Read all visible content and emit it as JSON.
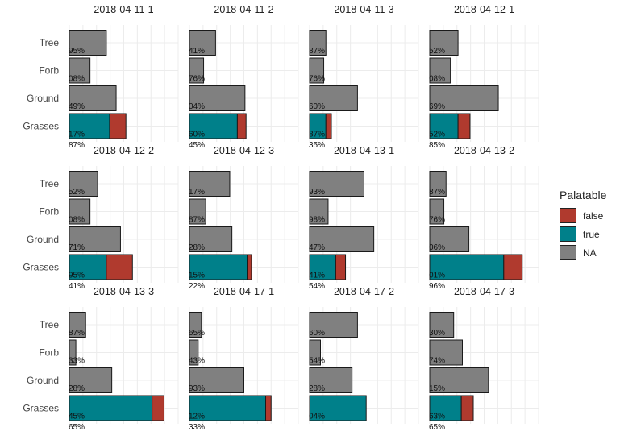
{
  "colors": {
    "false": "#b03a2e",
    "true": "#00808a",
    "NA": "#808080"
  },
  "legend": {
    "title": "Palatable",
    "items": [
      {
        "key": "false",
        "label": "false",
        "color": "#b03a2e"
      },
      {
        "key": "true",
        "label": "true",
        "color": "#00808a"
      },
      {
        "key": "NA",
        "label": "NA",
        "color": "#808080"
      }
    ]
  },
  "chart_data": {
    "type": "bar",
    "orientation": "horizontal",
    "stacked": true,
    "facet_ncol": 4,
    "categories": [
      "Tree",
      "Forb",
      "Ground",
      "Grasses"
    ],
    "xlim": [
      0,
      10
    ],
    "grid": true,
    "legend_position": "right",
    "panels": [
      {
        "title": "2018-04-11-1",
        "bars": [
          {
            "category": "Tree",
            "segments": [
              {
                "fill": "NA",
                "value": 3.4
              }
            ],
            "labels": [
              "95%"
            ]
          },
          {
            "category": "Forb",
            "segments": [
              {
                "fill": "NA",
                "value": 1.9
              }
            ],
            "labels": [
              "08%"
            ]
          },
          {
            "category": "Ground",
            "segments": [
              {
                "fill": "NA",
                "value": 4.3
              }
            ],
            "labels": [
              "49%"
            ]
          },
          {
            "category": "Grasses",
            "segments": [
              {
                "fill": "true",
                "value": 3.7
              },
              {
                "fill": "false",
                "value": 1.5
              }
            ],
            "labels": [
              "17%",
              "87%"
            ]
          }
        ]
      },
      {
        "title": "2018-04-11-2",
        "bars": [
          {
            "category": "Tree",
            "segments": [
              {
                "fill": "NA",
                "value": 2.4
              }
            ],
            "labels": [
              "41%"
            ]
          },
          {
            "category": "Forb",
            "segments": [
              {
                "fill": "NA",
                "value": 1.3
              }
            ],
            "labels": [
              "76%"
            ]
          },
          {
            "category": "Ground",
            "segments": [
              {
                "fill": "NA",
                "value": 5.1
              }
            ],
            "labels": [
              "04%"
            ]
          },
          {
            "category": "Grasses",
            "segments": [
              {
                "fill": "true",
                "value": 4.4
              },
              {
                "fill": "false",
                "value": 0.8
              }
            ],
            "labels": [
              "60%",
              "45%"
            ]
          }
        ]
      },
      {
        "title": "2018-04-11-3",
        "bars": [
          {
            "category": "Tree",
            "segments": [
              {
                "fill": "NA",
                "value": 1.5
              }
            ],
            "labels": [
              "87%"
            ]
          },
          {
            "category": "Forb",
            "segments": [
              {
                "fill": "NA",
                "value": 1.3
              }
            ],
            "labels": [
              "76%"
            ]
          },
          {
            "category": "Ground",
            "segments": [
              {
                "fill": "NA",
                "value": 4.4
              }
            ],
            "labels": [
              "60%"
            ]
          },
          {
            "category": "Grasses",
            "segments": [
              {
                "fill": "true",
                "value": 1.5
              },
              {
                "fill": "false",
                "value": 0.5
              }
            ],
            "labels": [
              "87%",
              "35%"
            ]
          }
        ]
      },
      {
        "title": "2018-04-12-1",
        "bars": [
          {
            "category": "Tree",
            "segments": [
              {
                "fill": "NA",
                "value": 2.6
              }
            ],
            "labels": [
              "52%"
            ]
          },
          {
            "category": "Forb",
            "segments": [
              {
                "fill": "NA",
                "value": 1.9
              }
            ],
            "labels": [
              "08%"
            ]
          },
          {
            "category": "Ground",
            "segments": [
              {
                "fill": "NA",
                "value": 6.3
              }
            ],
            "labels": [
              "69%"
            ]
          },
          {
            "category": "Grasses",
            "segments": [
              {
                "fill": "true",
                "value": 2.6
              },
              {
                "fill": "false",
                "value": 1.1
              }
            ],
            "labels": [
              "52%",
              "85%"
            ]
          }
        ]
      },
      {
        "title": "2018-04-12-2",
        "bars": [
          {
            "category": "Tree",
            "segments": [
              {
                "fill": "NA",
                "value": 2.6
              }
            ],
            "labels": [
              "52%"
            ]
          },
          {
            "category": "Forb",
            "segments": [
              {
                "fill": "NA",
                "value": 1.9
              }
            ],
            "labels": [
              "08%"
            ]
          },
          {
            "category": "Ground",
            "segments": [
              {
                "fill": "NA",
                "value": 4.7
              }
            ],
            "labels": [
              "71%"
            ]
          },
          {
            "category": "Grasses",
            "segments": [
              {
                "fill": "true",
                "value": 3.4
              },
              {
                "fill": "false",
                "value": 2.4
              }
            ],
            "labels": [
              "95%",
              "41%"
            ]
          }
        ]
      },
      {
        "title": "2018-04-12-3",
        "bars": [
          {
            "category": "Tree",
            "segments": [
              {
                "fill": "NA",
                "value": 3.7
              }
            ],
            "labels": [
              "17%"
            ]
          },
          {
            "category": "Forb",
            "segments": [
              {
                "fill": "NA",
                "value": 1.5
              }
            ],
            "labels": [
              "87%"
            ]
          },
          {
            "category": "Ground",
            "segments": [
              {
                "fill": "NA",
                "value": 3.9
              }
            ],
            "labels": [
              "28%"
            ]
          },
          {
            "category": "Grasses",
            "segments": [
              {
                "fill": "true",
                "value": 5.3
              },
              {
                "fill": "false",
                "value": 0.4
              }
            ],
            "labels": [
              "15%",
              "22%"
            ]
          }
        ]
      },
      {
        "title": "2018-04-13-1",
        "bars": [
          {
            "category": "Tree",
            "segments": [
              {
                "fill": "NA",
                "value": 5.0
              }
            ],
            "labels": [
              "93%"
            ]
          },
          {
            "category": "Forb",
            "segments": [
              {
                "fill": "NA",
                "value": 1.7
              }
            ],
            "labels": [
              "98%"
            ]
          },
          {
            "category": "Ground",
            "segments": [
              {
                "fill": "NA",
                "value": 5.9
              }
            ],
            "labels": [
              "47%"
            ]
          },
          {
            "category": "Grasses",
            "segments": [
              {
                "fill": "true",
                "value": 2.4
              },
              {
                "fill": "false",
                "value": 0.9
              }
            ],
            "labels": [
              "41%",
              "54%"
            ]
          }
        ]
      },
      {
        "title": "2018-04-13-2",
        "bars": [
          {
            "category": "Tree",
            "segments": [
              {
                "fill": "NA",
                "value": 1.5
              }
            ],
            "labels": [
              "87%"
            ]
          },
          {
            "category": "Forb",
            "segments": [
              {
                "fill": "NA",
                "value": 1.3
              }
            ],
            "labels": [
              "76%"
            ]
          },
          {
            "category": "Ground",
            "segments": [
              {
                "fill": "NA",
                "value": 3.6
              }
            ],
            "labels": [
              "06%"
            ]
          },
          {
            "category": "Grasses",
            "segments": [
              {
                "fill": "true",
                "value": 6.8
              },
              {
                "fill": "false",
                "value": 1.7
              }
            ],
            "labels": [
              "01%",
              "96%"
            ]
          }
        ]
      },
      {
        "title": "2018-04-13-3",
        "bars": [
          {
            "category": "Tree",
            "segments": [
              {
                "fill": "NA",
                "value": 1.5
              }
            ],
            "labels": [
              "87%"
            ]
          },
          {
            "category": "Forb",
            "segments": [
              {
                "fill": "NA",
                "value": 0.6
              }
            ],
            "labels": [
              "33%"
            ]
          },
          {
            "category": "Ground",
            "segments": [
              {
                "fill": "NA",
                "value": 3.9
              }
            ],
            "labels": [
              "28%"
            ]
          },
          {
            "category": "Grasses",
            "segments": [
              {
                "fill": "true",
                "value": 7.6
              },
              {
                "fill": "false",
                "value": 1.1
              }
            ],
            "labels": [
              "45%",
              "65%"
            ]
          }
        ]
      },
      {
        "title": "2018-04-17-1",
        "bars": [
          {
            "category": "Tree",
            "segments": [
              {
                "fill": "NA",
                "value": 1.1
              }
            ],
            "labels": [
              "65%"
            ]
          },
          {
            "category": "Forb",
            "segments": [
              {
                "fill": "NA",
                "value": 0.8
              }
            ],
            "labels": [
              "43%"
            ]
          },
          {
            "category": "Ground",
            "segments": [
              {
                "fill": "NA",
                "value": 5.0
              }
            ],
            "labels": [
              "93%"
            ]
          },
          {
            "category": "Grasses",
            "segments": [
              {
                "fill": "true",
                "value": 7.0
              },
              {
                "fill": "false",
                "value": 0.5
              }
            ],
            "labels": [
              "12%",
              "33%"
            ]
          }
        ]
      },
      {
        "title": "2018-04-17-2",
        "bars": [
          {
            "category": "Tree",
            "segments": [
              {
                "fill": "NA",
                "value": 4.4
              }
            ],
            "labels": [
              "60%"
            ]
          },
          {
            "category": "Forb",
            "segments": [
              {
                "fill": "NA",
                "value": 1.0
              }
            ],
            "labels": [
              "54%"
            ]
          },
          {
            "category": "Ground",
            "segments": [
              {
                "fill": "NA",
                "value": 3.9
              }
            ],
            "labels": [
              "28%"
            ]
          },
          {
            "category": "Grasses",
            "segments": [
              {
                "fill": "true",
                "value": 5.2
              }
            ],
            "labels": [
              "04%"
            ]
          }
        ]
      },
      {
        "title": "2018-04-17-3",
        "bars": [
          {
            "category": "Tree",
            "segments": [
              {
                "fill": "NA",
                "value": 2.2
              }
            ],
            "labels": [
              "30%"
            ]
          },
          {
            "category": "Forb",
            "segments": [
              {
                "fill": "NA",
                "value": 3.0
              }
            ],
            "labels": [
              "74%"
            ]
          },
          {
            "category": "Ground",
            "segments": [
              {
                "fill": "NA",
                "value": 5.4
              }
            ],
            "labels": [
              "15%"
            ]
          },
          {
            "category": "Grasses",
            "segments": [
              {
                "fill": "true",
                "value": 2.9
              },
              {
                "fill": "false",
                "value": 1.1
              }
            ],
            "labels": [
              "63%",
              "65%"
            ]
          }
        ]
      }
    ]
  }
}
